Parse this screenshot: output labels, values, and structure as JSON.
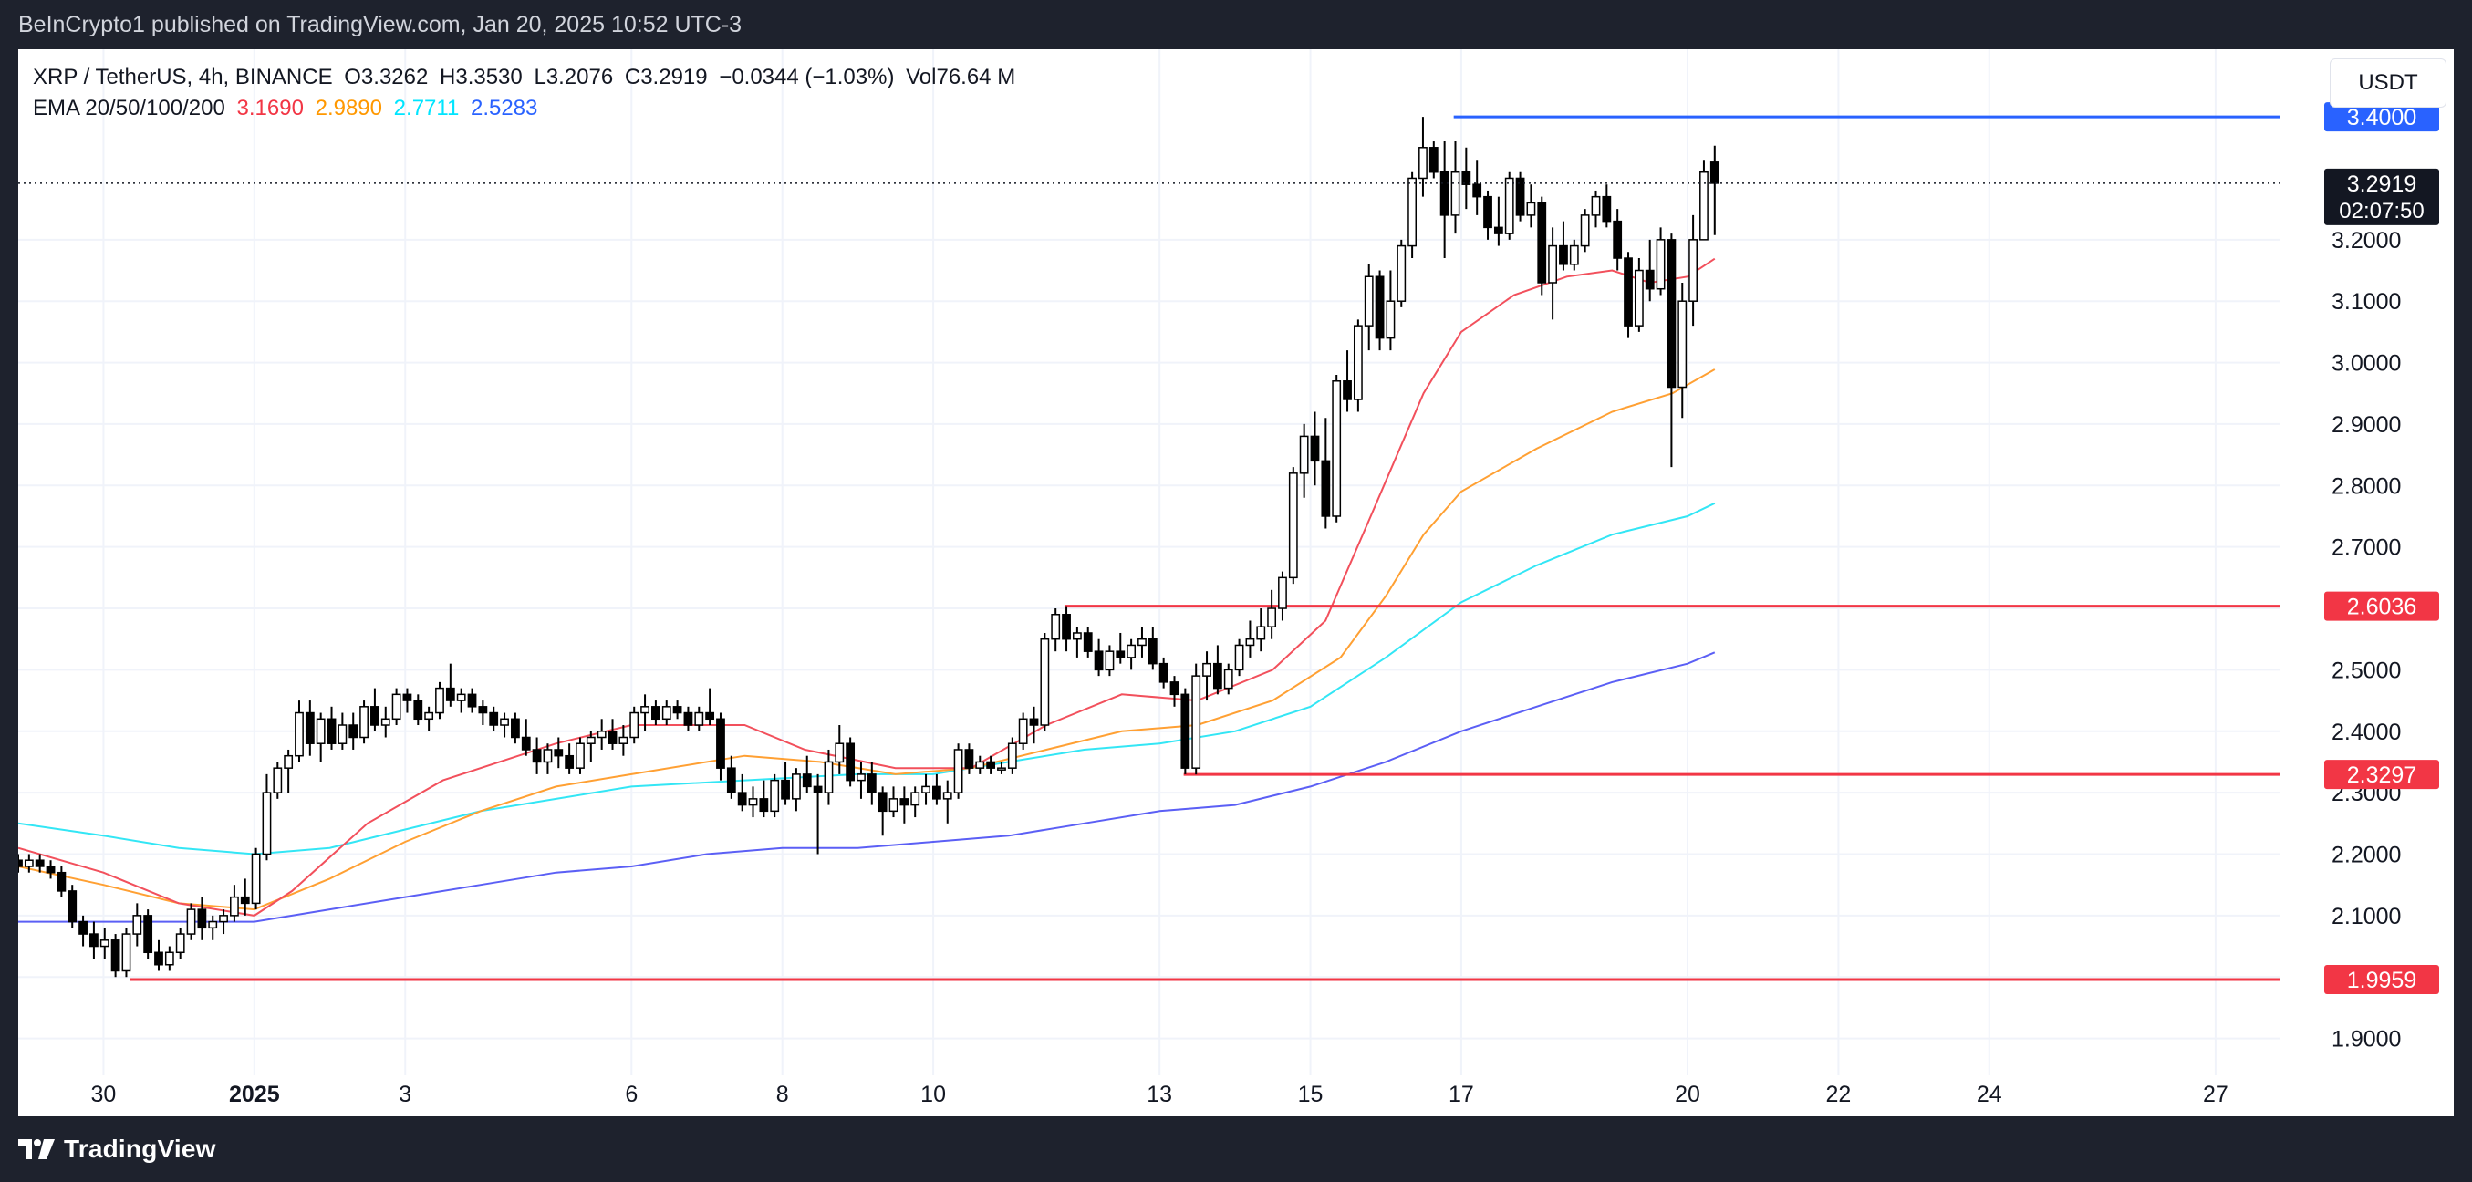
{
  "header": {
    "published": "BeInCrypto1 published on TradingView.com, Jan 20, 2025 10:52 UTC-3"
  },
  "footer": {
    "brand": "TradingView"
  },
  "legend": {
    "symbol": "XRP / TetherUS, 4h, BINANCE",
    "open": "O3.3262",
    "high": "H3.3530",
    "low": "L3.2076",
    "close": "C3.2919",
    "change": "−0.0344 (−1.03%)",
    "volume": "Vol76.64 M",
    "ema_label": "EMA 20/50/100/200",
    "ema20": "3.1690",
    "ema50": "2.9890",
    "ema100": "2.7711",
    "ema200": "2.5283"
  },
  "currency_button": "USDT",
  "colors": {
    "background": "#ffffff",
    "frame": "#1e222d",
    "ema20": "#f23645",
    "ema50": "#ff9800",
    "ema100": "#00e5ff",
    "ema200": "#2962ff",
    "resistance": "#2962ff",
    "support": "#f23645"
  },
  "chart_data": {
    "type": "candlestick",
    "symbol": "XRP / TetherUS",
    "interval": "4h",
    "exchange": "BINANCE",
    "ylim": [
      1.84,
      3.51
    ],
    "yticks": [
      "1.9000",
      "2.0000",
      "2.1000",
      "2.2000",
      "2.3000",
      "2.4000",
      "2.5000",
      "2.6000",
      "2.7000",
      "2.8000",
      "2.9000",
      "3.0000",
      "3.1000",
      "3.2000"
    ],
    "xlim_days_from_dec28": [
      0.87,
      30.86
    ],
    "xticks": [
      {
        "label": "30",
        "day": 2,
        "bold": false
      },
      {
        "label": "2025",
        "day": 4,
        "bold": true
      },
      {
        "label": "3",
        "day": 6,
        "bold": false
      },
      {
        "label": "6",
        "day": 9,
        "bold": false
      },
      {
        "label": "8",
        "day": 11,
        "bold": false
      },
      {
        "label": "10",
        "day": 13,
        "bold": false
      },
      {
        "label": "13",
        "day": 16,
        "bold": false
      },
      {
        "label": "15",
        "day": 18,
        "bold": false
      },
      {
        "label": "17",
        "day": 20,
        "bold": false
      },
      {
        "label": "20",
        "day": 23,
        "bold": false
      },
      {
        "label": "22",
        "day": 25,
        "bold": false
      },
      {
        "label": "24",
        "day": 27,
        "bold": false
      },
      {
        "label": "27",
        "day": 30,
        "bold": false
      }
    ],
    "horizontal_levels": [
      {
        "value": 3.4,
        "label": "3.4000",
        "color": "#2962ff",
        "from_day": 19.9
      },
      {
        "value": 2.6036,
        "label": "2.6036",
        "color": "#f23645",
        "from_day": 14.74
      },
      {
        "value": 2.3297,
        "label": "2.3297",
        "color": "#f23645",
        "from_day": 16.32
      },
      {
        "value": 1.9959,
        "label": "1.9959",
        "color": "#f23645",
        "from_day": 2.35
      }
    ],
    "last_price": {
      "value": 3.2919,
      "label": "3.2919",
      "countdown": "02:07:50"
    },
    "candles_ohlc": [
      [
        2.19,
        2.2,
        2.17,
        2.18
      ],
      [
        2.18,
        2.2,
        2.17,
        2.19
      ],
      [
        2.19,
        2.2,
        2.17,
        2.18
      ],
      [
        2.18,
        2.19,
        2.16,
        2.17
      ],
      [
        2.17,
        2.18,
        2.13,
        2.14
      ],
      [
        2.14,
        2.15,
        2.08,
        2.09
      ],
      [
        2.09,
        2.1,
        2.05,
        2.07
      ],
      [
        2.07,
        2.09,
        2.03,
        2.05
      ],
      [
        2.05,
        2.08,
        2.03,
        2.06
      ],
      [
        2.06,
        2.07,
        2.0,
        2.01
      ],
      [
        2.01,
        2.08,
        2.0,
        2.07
      ],
      [
        2.07,
        2.12,
        2.05,
        2.1
      ],
      [
        2.1,
        2.11,
        2.03,
        2.04
      ],
      [
        2.04,
        2.06,
        2.01,
        2.02
      ],
      [
        2.02,
        2.05,
        2.01,
        2.04
      ],
      [
        2.04,
        2.08,
        2.03,
        2.07
      ],
      [
        2.07,
        2.12,
        2.06,
        2.11
      ],
      [
        2.11,
        2.13,
        2.06,
        2.08
      ],
      [
        2.08,
        2.1,
        2.06,
        2.09
      ],
      [
        2.09,
        2.11,
        2.07,
        2.1
      ],
      [
        2.1,
        2.15,
        2.09,
        2.13
      ],
      [
        2.13,
        2.16,
        2.1,
        2.12
      ],
      [
        2.12,
        2.21,
        2.11,
        2.2
      ],
      [
        2.2,
        2.33,
        2.19,
        2.3
      ],
      [
        2.3,
        2.35,
        2.29,
        2.34
      ],
      [
        2.34,
        2.37,
        2.3,
        2.36
      ],
      [
        2.36,
        2.45,
        2.35,
        2.43
      ],
      [
        2.43,
        2.45,
        2.36,
        2.38
      ],
      [
        2.38,
        2.43,
        2.35,
        2.42
      ],
      [
        2.42,
        2.44,
        2.37,
        2.38
      ],
      [
        2.38,
        2.43,
        2.37,
        2.41
      ],
      [
        2.41,
        2.43,
        2.37,
        2.39
      ],
      [
        2.39,
        2.45,
        2.38,
        2.44
      ],
      [
        2.44,
        2.47,
        2.4,
        2.41
      ],
      [
        2.41,
        2.44,
        2.39,
        2.42
      ],
      [
        2.42,
        2.47,
        2.41,
        2.46
      ],
      [
        2.46,
        2.47,
        2.43,
        2.45
      ],
      [
        2.45,
        2.46,
        2.41,
        2.42
      ],
      [
        2.42,
        2.44,
        2.4,
        2.43
      ],
      [
        2.43,
        2.48,
        2.42,
        2.47
      ],
      [
        2.47,
        2.51,
        2.44,
        2.45
      ],
      [
        2.45,
        2.47,
        2.43,
        2.46
      ],
      [
        2.46,
        2.47,
        2.43,
        2.44
      ],
      [
        2.44,
        2.45,
        2.41,
        2.43
      ],
      [
        2.43,
        2.44,
        2.4,
        2.41
      ],
      [
        2.41,
        2.43,
        2.39,
        2.42
      ],
      [
        2.42,
        2.43,
        2.38,
        2.39
      ],
      [
        2.39,
        2.42,
        2.36,
        2.37
      ],
      [
        2.37,
        2.39,
        2.33,
        2.35
      ],
      [
        2.35,
        2.38,
        2.33,
        2.37
      ],
      [
        2.37,
        2.39,
        2.34,
        2.36
      ],
      [
        2.36,
        2.38,
        2.33,
        2.34
      ],
      [
        2.34,
        2.39,
        2.33,
        2.38
      ],
      [
        2.38,
        2.4,
        2.35,
        2.39
      ],
      [
        2.39,
        2.42,
        2.37,
        2.4
      ],
      [
        2.4,
        2.42,
        2.37,
        2.38
      ],
      [
        2.38,
        2.41,
        2.36,
        2.39
      ],
      [
        2.39,
        2.44,
        2.38,
        2.43
      ],
      [
        2.43,
        2.46,
        2.4,
        2.44
      ],
      [
        2.44,
        2.45,
        2.41,
        2.42
      ],
      [
        2.42,
        2.45,
        2.41,
        2.44
      ],
      [
        2.44,
        2.45,
        2.42,
        2.43
      ],
      [
        2.43,
        2.44,
        2.4,
        2.41
      ],
      [
        2.41,
        2.44,
        2.4,
        2.43
      ],
      [
        2.43,
        2.47,
        2.41,
        2.42
      ],
      [
        2.42,
        2.43,
        2.32,
        2.34
      ],
      [
        2.34,
        2.36,
        2.29,
        2.3
      ],
      [
        2.3,
        2.33,
        2.27,
        2.28
      ],
      [
        2.28,
        2.31,
        2.26,
        2.29
      ],
      [
        2.29,
        2.32,
        2.26,
        2.27
      ],
      [
        2.27,
        2.33,
        2.26,
        2.32
      ],
      [
        2.32,
        2.35,
        2.28,
        2.29
      ],
      [
        2.29,
        2.34,
        2.27,
        2.33
      ],
      [
        2.33,
        2.36,
        2.3,
        2.31
      ],
      [
        2.31,
        2.33,
        2.2,
        2.3
      ],
      [
        2.3,
        2.37,
        2.28,
        2.35
      ],
      [
        2.35,
        2.41,
        2.33,
        2.38
      ],
      [
        2.38,
        2.39,
        2.31,
        2.32
      ],
      [
        2.32,
        2.35,
        2.29,
        2.33
      ],
      [
        2.33,
        2.35,
        2.28,
        2.3
      ],
      [
        2.3,
        2.31,
        2.23,
        2.27
      ],
      [
        2.27,
        2.31,
        2.26,
        2.29
      ],
      [
        2.29,
        2.31,
        2.25,
        2.28
      ],
      [
        2.28,
        2.31,
        2.26,
        2.3
      ],
      [
        2.3,
        2.33,
        2.28,
        2.31
      ],
      [
        2.31,
        2.33,
        2.28,
        2.29
      ],
      [
        2.29,
        2.32,
        2.25,
        2.3
      ],
      [
        2.3,
        2.38,
        2.29,
        2.37
      ],
      [
        2.37,
        2.38,
        2.33,
        2.34
      ],
      [
        2.34,
        2.36,
        2.33,
        2.35
      ],
      [
        2.35,
        2.36,
        2.33,
        2.34
      ],
      [
        2.34,
        2.35,
        2.33,
        2.34
      ],
      [
        2.34,
        2.39,
        2.33,
        2.38
      ],
      [
        2.38,
        2.43,
        2.37,
        2.42
      ],
      [
        2.42,
        2.44,
        2.38,
        2.41
      ],
      [
        2.41,
        2.56,
        2.4,
        2.55
      ],
      [
        2.55,
        2.6,
        2.53,
        2.59
      ],
      [
        2.59,
        2.6036,
        2.53,
        2.55
      ],
      [
        2.55,
        2.57,
        2.52,
        2.56
      ],
      [
        2.56,
        2.57,
        2.52,
        2.53
      ],
      [
        2.53,
        2.55,
        2.49,
        2.5
      ],
      [
        2.5,
        2.54,
        2.49,
        2.53
      ],
      [
        2.53,
        2.56,
        2.51,
        2.52
      ],
      [
        2.52,
        2.55,
        2.5,
        2.54
      ],
      [
        2.54,
        2.57,
        2.52,
        2.55
      ],
      [
        2.55,
        2.57,
        2.5,
        2.51
      ],
      [
        2.51,
        2.52,
        2.47,
        2.48
      ],
      [
        2.48,
        2.49,
        2.44,
        2.46
      ],
      [
        2.46,
        2.47,
        2.33,
        2.34
      ],
      [
        2.34,
        2.51,
        2.3297,
        2.49
      ],
      [
        2.49,
        2.53,
        2.45,
        2.51
      ],
      [
        2.51,
        2.54,
        2.46,
        2.47
      ],
      [
        2.47,
        2.51,
        2.46,
        2.5
      ],
      [
        2.5,
        2.55,
        2.49,
        2.54
      ],
      [
        2.54,
        2.58,
        2.52,
        2.55
      ],
      [
        2.55,
        2.6,
        2.53,
        2.57
      ],
      [
        2.57,
        2.63,
        2.55,
        2.6
      ],
      [
        2.6,
        2.66,
        2.58,
        2.65
      ],
      [
        2.65,
        2.83,
        2.64,
        2.82
      ],
      [
        2.82,
        2.9,
        2.78,
        2.88
      ],
      [
        2.88,
        2.92,
        2.8,
        2.84
      ],
      [
        2.84,
        2.91,
        2.73,
        2.75
      ],
      [
        2.75,
        2.98,
        2.74,
        2.97
      ],
      [
        2.97,
        3.02,
        2.92,
        2.94
      ],
      [
        2.94,
        3.07,
        2.92,
        3.06
      ],
      [
        3.06,
        3.16,
        3.02,
        3.14
      ],
      [
        3.14,
        3.15,
        3.02,
        3.04
      ],
      [
        3.04,
        3.15,
        3.02,
        3.1
      ],
      [
        3.1,
        3.2,
        3.09,
        3.19
      ],
      [
        3.19,
        3.31,
        3.17,
        3.3
      ],
      [
        3.3,
        3.4,
        3.27,
        3.35
      ],
      [
        3.35,
        3.36,
        3.3,
        3.31
      ],
      [
        3.31,
        3.36,
        3.17,
        3.24
      ],
      [
        3.24,
        3.36,
        3.21,
        3.31
      ],
      [
        3.31,
        3.35,
        3.25,
        3.29
      ],
      [
        3.29,
        3.33,
        3.24,
        3.27
      ],
      [
        3.27,
        3.28,
        3.2,
        3.22
      ],
      [
        3.22,
        3.27,
        3.19,
        3.21
      ],
      [
        3.21,
        3.31,
        3.2,
        3.3
      ],
      [
        3.3,
        3.31,
        3.23,
        3.24
      ],
      [
        3.24,
        3.29,
        3.22,
        3.26
      ],
      [
        3.26,
        3.27,
        3.11,
        3.13
      ],
      [
        3.13,
        3.22,
        3.07,
        3.19
      ],
      [
        3.19,
        3.23,
        3.15,
        3.16
      ],
      [
        3.16,
        3.2,
        3.15,
        3.19
      ],
      [
        3.19,
        3.25,
        3.18,
        3.24
      ],
      [
        3.24,
        3.28,
        3.22,
        3.27
      ],
      [
        3.27,
        3.29,
        3.22,
        3.23
      ],
      [
        3.23,
        3.25,
        3.15,
        3.17
      ],
      [
        3.17,
        3.18,
        3.04,
        3.06
      ],
      [
        3.06,
        3.17,
        3.05,
        3.15
      ],
      [
        3.15,
        3.2,
        3.1,
        3.12
      ],
      [
        3.12,
        3.22,
        3.11,
        3.2
      ],
      [
        3.2,
        3.21,
        2.83,
        2.96
      ],
      [
        2.96,
        3.13,
        2.91,
        3.1
      ],
      [
        3.1,
        3.24,
        3.06,
        3.2
      ],
      [
        3.2,
        3.33,
        3.2,
        3.31
      ],
      [
        3.3262,
        3.353,
        3.2076,
        3.2919
      ]
    ],
    "ema": {
      "ema20": [
        [
          0.87,
          2.21
        ],
        [
          2,
          2.17
        ],
        [
          3,
          2.12
        ],
        [
          4,
          2.1
        ],
        [
          4.5,
          2.14
        ],
        [
          5.5,
          2.25
        ],
        [
          6.5,
          2.32
        ],
        [
          8,
          2.38
        ],
        [
          9,
          2.41
        ],
        [
          10.5,
          2.41
        ],
        [
          11.3,
          2.37
        ],
        [
          12.5,
          2.34
        ],
        [
          13.5,
          2.34
        ],
        [
          14.5,
          2.41
        ],
        [
          15.5,
          2.46
        ],
        [
          16.5,
          2.45
        ],
        [
          17.5,
          2.5
        ],
        [
          18.2,
          2.58
        ],
        [
          18.8,
          2.75
        ],
        [
          19.5,
          2.95
        ],
        [
          20,
          3.05
        ],
        [
          20.7,
          3.11
        ],
        [
          21.4,
          3.14
        ],
        [
          22,
          3.15
        ],
        [
          22.5,
          3.13
        ],
        [
          23,
          3.14
        ],
        [
          23.36,
          3.169
        ]
      ],
      "ema50": [
        [
          0.87,
          2.18
        ],
        [
          2,
          2.15
        ],
        [
          3,
          2.12
        ],
        [
          4,
          2.11
        ],
        [
          5,
          2.16
        ],
        [
          6,
          2.22
        ],
        [
          7,
          2.27
        ],
        [
          8,
          2.31
        ],
        [
          9,
          2.33
        ],
        [
          10.5,
          2.36
        ],
        [
          11.5,
          2.35
        ],
        [
          12.5,
          2.33
        ],
        [
          13.5,
          2.34
        ],
        [
          14.5,
          2.37
        ],
        [
          15.5,
          2.4
        ],
        [
          16.5,
          2.41
        ],
        [
          17.5,
          2.45
        ],
        [
          18.4,
          2.52
        ],
        [
          19,
          2.62
        ],
        [
          19.5,
          2.72
        ],
        [
          20,
          2.79
        ],
        [
          21,
          2.86
        ],
        [
          22,
          2.92
        ],
        [
          22.8,
          2.95
        ],
        [
          23.36,
          2.989
        ]
      ],
      "ema100": [
        [
          0.87,
          2.25
        ],
        [
          2,
          2.23
        ],
        [
          3,
          2.21
        ],
        [
          4,
          2.2
        ],
        [
          5,
          2.21
        ],
        [
          6,
          2.24
        ],
        [
          7,
          2.27
        ],
        [
          8,
          2.29
        ],
        [
          9,
          2.31
        ],
        [
          10.5,
          2.32
        ],
        [
          12,
          2.33
        ],
        [
          13,
          2.33
        ],
        [
          14,
          2.35
        ],
        [
          15,
          2.37
        ],
        [
          16,
          2.38
        ],
        [
          17,
          2.4
        ],
        [
          18,
          2.44
        ],
        [
          19,
          2.52
        ],
        [
          20,
          2.61
        ],
        [
          21,
          2.67
        ],
        [
          22,
          2.72
        ],
        [
          23,
          2.75
        ],
        [
          23.36,
          2.7711
        ]
      ],
      "ema200": [
        [
          0.87,
          2.09
        ],
        [
          2,
          2.09
        ],
        [
          3,
          2.09
        ],
        [
          4,
          2.09
        ],
        [
          5,
          2.11
        ],
        [
          6,
          2.13
        ],
        [
          7,
          2.15
        ],
        [
          8,
          2.17
        ],
        [
          9,
          2.18
        ],
        [
          10,
          2.2
        ],
        [
          11,
          2.21
        ],
        [
          12,
          2.21
        ],
        [
          13,
          2.22
        ],
        [
          14,
          2.23
        ],
        [
          15,
          2.25
        ],
        [
          16,
          2.27
        ],
        [
          17,
          2.28
        ],
        [
          18,
          2.31
        ],
        [
          19,
          2.35
        ],
        [
          20,
          2.4
        ],
        [
          21,
          2.44
        ],
        [
          22,
          2.48
        ],
        [
          23,
          2.51
        ],
        [
          23.36,
          2.5283
        ]
      ]
    }
  }
}
